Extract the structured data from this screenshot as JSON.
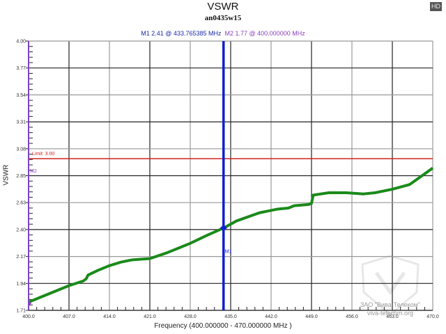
{
  "header": {
    "title": "VSWR",
    "subtitle": "an0435w15",
    "badge": "HD",
    "marker1_text": "M1  2.41 @ 433.765385 MHz",
    "marker2_text": "M2  1.77 @ 400.000000 MHz"
  },
  "axes": {
    "ylabel": "VSWR",
    "xlabel": "Frequency (400.000000 - 470.000000 MHz )"
  },
  "limit": {
    "label": "Limit: 3.00",
    "value": 3.0,
    "color": "#d02020"
  },
  "markers": [
    {
      "id": "M1",
      "label": "M1",
      "x": 433.765385,
      "y": 2.41,
      "color": "#1020d0"
    },
    {
      "id": "M2",
      "label": "M2",
      "x": 400.0,
      "y": 1.77,
      "color": "#8a3fc0"
    }
  ],
  "watermark": {
    "line1": "ЗАО \"Вива-Телеком\"",
    "line2": "viva-telecom.org"
  },
  "chart_data": {
    "type": "line",
    "title": "VSWR",
    "subtitle": "an0435w15",
    "xlabel": "Frequency (400.000000 - 470.000000 MHz )",
    "ylabel": "VSWR",
    "xlim": [
      400.0,
      470.0
    ],
    "ylim": [
      1.71,
      4.0
    ],
    "xticks": [
      "400.0",
      "407.0",
      "414.0",
      "421.0",
      "428.0",
      "435.0",
      "442.0",
      "449.0",
      "456.0",
      "463.0",
      "470.0"
    ],
    "yticks": [
      "4.00",
      "3.77",
      "3.54",
      "3.31",
      "3.08",
      "2.85",
      "2.63",
      "2.40",
      "2.17",
      "1.94",
      "1.71"
    ],
    "grid": true,
    "series": [
      {
        "name": "VSWR",
        "color": "#1a8a1a",
        "x": [
          400.0,
          402.0,
          405.0,
          407.0,
          409.5,
          410.0,
          410.3,
          412.0,
          414.0,
          416.0,
          418.0,
          421.0,
          424.0,
          428.0,
          431.0,
          433.77,
          436.0,
          440.0,
          443.0,
          445.0,
          446.0,
          448.5,
          449.0,
          449.3,
          452.0,
          455.0,
          458.0,
          460.0,
          463.0,
          466.0,
          468.0,
          470.0
        ],
        "y": [
          1.78,
          1.82,
          1.88,
          1.92,
          1.96,
          1.98,
          2.01,
          2.05,
          2.09,
          2.12,
          2.14,
          2.15,
          2.2,
          2.28,
          2.35,
          2.41,
          2.47,
          2.54,
          2.57,
          2.58,
          2.6,
          2.61,
          2.62,
          2.69,
          2.71,
          2.71,
          2.7,
          2.71,
          2.74,
          2.78,
          2.85,
          2.92
        ]
      }
    ],
    "limit_line": {
      "label": "Limit: 3.00",
      "value": 3.0
    },
    "annotations": [
      {
        "label": "M1",
        "x": 433.765385,
        "y": 2.41
      },
      {
        "label": "M2",
        "x": 400.0,
        "y": 1.77
      }
    ]
  }
}
